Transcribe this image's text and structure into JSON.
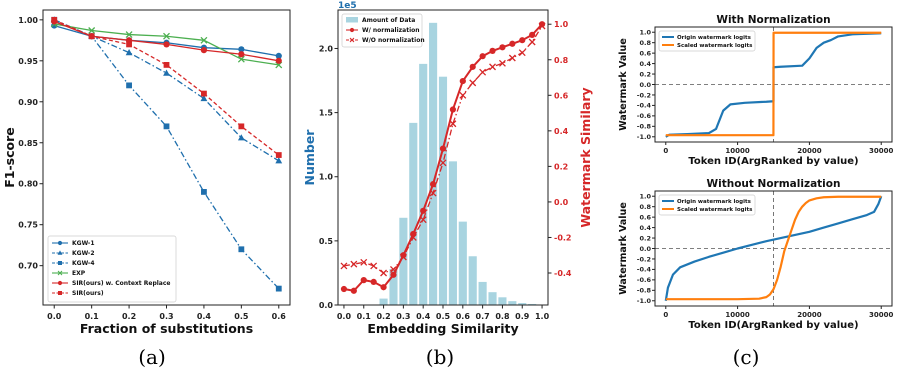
{
  "captions": [
    "(a)",
    "(b)",
    "(c)"
  ],
  "chart_data": [
    {
      "type": "line",
      "xlabel": "Fraction of substitutions",
      "ylabel": "F1-score",
      "xlim": [
        -0.03,
        0.63
      ],
      "ylim": [
        0.652,
        1.012
      ],
      "xticks": [
        "0.0",
        "0.1",
        "0.2",
        "0.3",
        "0.4",
        "0.5",
        "0.6"
      ],
      "yticks": [
        "0.70",
        "0.75",
        "0.80",
        "0.85",
        "0.90",
        "0.95",
        "1.00"
      ],
      "legend": "bottom-left",
      "x": [
        0.0,
        0.1,
        0.2,
        0.3,
        0.4,
        0.5,
        0.6
      ],
      "series": [
        {
          "name": "KGW-1",
          "color": "#1f6fad",
          "marker": "circle",
          "dash": "solid",
          "values": [
            0.993,
            0.98,
            0.975,
            0.972,
            0.966,
            0.964,
            0.956
          ]
        },
        {
          "name": "KGW-2",
          "color": "#1f6fad",
          "marker": "triangle",
          "dash": "dashdot",
          "values": [
            1.0,
            0.98,
            0.96,
            0.935,
            0.904,
            0.856,
            0.828
          ]
        },
        {
          "name": "KGW-4",
          "color": "#1f6fad",
          "marker": "square",
          "dash": "dashdot",
          "values": [
            1.0,
            0.98,
            0.92,
            0.87,
            0.79,
            0.72,
            0.672
          ]
        },
        {
          "name": "EXP",
          "color": "#4caf50",
          "marker": "x",
          "dash": "solid",
          "values": [
            0.995,
            0.987,
            0.982,
            0.98,
            0.975,
            0.952,
            0.945
          ]
        },
        {
          "name": "SIR(ours) w. Context Replace",
          "color": "#d62728",
          "marker": "circle",
          "dash": "solid",
          "values": [
            0.998,
            0.98,
            0.975,
            0.97,
            0.963,
            0.958,
            0.95
          ]
        },
        {
          "name": "SIR(ours)",
          "color": "#d62728",
          "marker": "square",
          "dash": "dashed",
          "values": [
            1.0,
            0.98,
            0.97,
            0.945,
            0.91,
            0.87,
            0.835
          ]
        }
      ]
    },
    {
      "type": "bar",
      "xlabel": "Embedding Similarity",
      "ylabel": "Number",
      "ylabel_right": "Watermark Similary",
      "exponent_label": "1e5",
      "xlim": [
        -0.03,
        1.03
      ],
      "ylim": [
        0,
        2.3
      ],
      "ylim_right": [
        -0.58,
        1.08
      ],
      "xticks": [
        "0.0",
        "0.1",
        "0.2",
        "0.3",
        "0.4",
        "0.5",
        "0.6",
        "0.7",
        "0.8",
        "0.9",
        "1.0"
      ],
      "yticks": [
        "0.0",
        "0.5",
        "1.0",
        "1.5",
        "2.0"
      ],
      "yticks_right": [
        "-0.4",
        "-0.2",
        "0.0",
        "0.2",
        "0.4",
        "0.6",
        "0.8",
        "1.0"
      ],
      "legend": "top-left",
      "bars": {
        "name": "Amount of Data",
        "color": "#a8d4e0",
        "x": [
          0.2,
          0.25,
          0.3,
          0.35,
          0.4,
          0.45,
          0.5,
          0.55,
          0.6,
          0.65,
          0.7,
          0.75,
          0.8,
          0.85,
          0.9,
          0.95
        ],
        "values": [
          0.05,
          0.28,
          0.68,
          1.42,
          1.88,
          2.2,
          1.78,
          1.12,
          0.65,
          0.38,
          0.18,
          0.1,
          0.06,
          0.03,
          0.015,
          0.008
        ]
      },
      "series": [
        {
          "name": "W/ normalization",
          "color": "#d62728",
          "marker": "circle",
          "dash": "solid",
          "x": [
            0.0,
            0.05,
            0.1,
            0.15,
            0.2,
            0.25,
            0.3,
            0.35,
            0.4,
            0.45,
            0.5,
            0.55,
            0.6,
            0.65,
            0.7,
            0.75,
            0.8,
            0.85,
            0.9,
            0.95,
            1.0
          ],
          "values": [
            -0.49,
            -0.5,
            -0.44,
            -0.45,
            -0.48,
            -0.41,
            -0.3,
            -0.18,
            -0.05,
            0.1,
            0.3,
            0.52,
            0.68,
            0.76,
            0.82,
            0.85,
            0.87,
            0.89,
            0.91,
            0.94,
            1.0
          ]
        },
        {
          "name": "W/O normalization",
          "color": "#d62728",
          "marker": "x",
          "dash": "dashdot",
          "x": [
            0.0,
            0.05,
            0.1,
            0.15,
            0.2,
            0.25,
            0.3,
            0.35,
            0.4,
            0.45,
            0.5,
            0.55,
            0.6,
            0.65,
            0.7,
            0.75,
            0.8,
            0.85,
            0.9,
            0.95,
            1.0
          ],
          "values": [
            -0.36,
            -0.35,
            -0.34,
            -0.36,
            -0.4,
            -0.38,
            -0.31,
            -0.2,
            -0.1,
            0.05,
            0.22,
            0.44,
            0.6,
            0.67,
            0.73,
            0.76,
            0.78,
            0.81,
            0.84,
            0.9,
            0.99
          ]
        }
      ]
    },
    {
      "type": "line",
      "title": "With Normalization",
      "xlabel": "Token ID(ArgRanked by value)",
      "ylabel": "Watermark Value",
      "xlim": [
        -1500,
        31500
      ],
      "ylim": [
        -1.1,
        1.1
      ],
      "xticks": [
        "0",
        "10000",
        "20000",
        "30000"
      ],
      "yticks": [
        "-1.0",
        "-0.8",
        "-0.6",
        "-0.4",
        "-0.2",
        "0.0",
        "0.2",
        "0.4",
        "0.6",
        "0.8",
        "1.0"
      ],
      "legend": "top-left",
      "hline": 0.0,
      "vline": 15000,
      "series": [
        {
          "name": "Origin watermark logits",
          "color": "#1f77b4",
          "x": [
            0,
            500,
            3000,
            6000,
            7000,
            8000,
            9000,
            11000,
            14000,
            15000,
            15000,
            16000,
            19000,
            20000,
            21000,
            22000,
            23000,
            24000,
            26000,
            28000,
            30000
          ],
          "values": [
            -1.0,
            -0.96,
            -0.95,
            -0.93,
            -0.85,
            -0.5,
            -0.38,
            -0.35,
            -0.33,
            -0.32,
            0.33,
            0.34,
            0.36,
            0.5,
            0.7,
            0.8,
            0.85,
            0.92,
            0.96,
            0.97,
            0.98
          ]
        },
        {
          "name": "Scaled watermark logits",
          "color": "#ff7f0e",
          "x": [
            0,
            14990,
            15010,
            30000
          ],
          "values": [
            -0.97,
            -0.97,
            0.99,
            0.99
          ]
        }
      ]
    },
    {
      "type": "line",
      "title": "Without Normalization",
      "xlabel": "Token ID(ArgRanked by value)",
      "ylabel": "Watermark Value",
      "xlim": [
        -1500,
        31500
      ],
      "ylim": [
        -1.1,
        1.1
      ],
      "xticks": [
        "0",
        "10000",
        "20000",
        "30000"
      ],
      "yticks": [
        "-1.0",
        "-0.8",
        "-0.6",
        "-0.4",
        "-0.2",
        "0.0",
        "0.2",
        "0.4",
        "0.6",
        "0.8",
        "1.0"
      ],
      "legend": "top-left",
      "hline": 0.0,
      "vline": 15000,
      "series": [
        {
          "name": "Origin watermark logits",
          "color": "#1f77b4",
          "x": [
            0,
            300,
            1000,
            2000,
            4000,
            6000,
            8000,
            10000,
            12000,
            14000,
            16000,
            18000,
            20000,
            22000,
            24000,
            26000,
            28000,
            29000,
            29600,
            30000
          ],
          "values": [
            -1.0,
            -0.75,
            -0.5,
            -0.36,
            -0.25,
            -0.16,
            -0.08,
            0.0,
            0.07,
            0.14,
            0.2,
            0.26,
            0.32,
            0.4,
            0.48,
            0.56,
            0.64,
            0.7,
            0.85,
            1.0
          ]
        },
        {
          "name": "Scaled watermark logits",
          "color": "#ff7f0e",
          "x": [
            0,
            10000,
            13000,
            14000,
            14500,
            15000,
            15500,
            16000,
            16500,
            17000,
            17500,
            18000,
            18500,
            19000,
            19500,
            20000,
            21000,
            22000,
            24000,
            30000
          ],
          "values": [
            -0.97,
            -0.97,
            -0.96,
            -0.93,
            -0.88,
            -0.78,
            -0.6,
            -0.35,
            -0.05,
            0.15,
            0.35,
            0.55,
            0.7,
            0.8,
            0.87,
            0.92,
            0.96,
            0.98,
            0.99,
            0.99
          ]
        }
      ]
    }
  ]
}
